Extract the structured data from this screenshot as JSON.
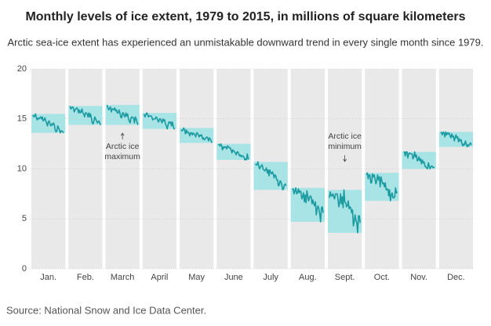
{
  "chart_data": {
    "type": "line",
    "title": "Monthly levels of ice extent, 1979 to 2015, in millions of square kilometers",
    "subtitle": "Arctic sea-ice extent has experienced an unmistakable downward trend in every single month since 1979.",
    "source": "Source: National Snow and Ice Data Center.",
    "ylim": [
      0,
      20
    ],
    "yticks": [
      0,
      5,
      10,
      15,
      20
    ],
    "grid": true,
    "line_color": "#1b9aa0",
    "band_color": "#a8e3e6",
    "panel_color": "#e9e9e9",
    "x": [
      1979,
      1980,
      1981,
      1982,
      1983,
      1984,
      1985,
      1986,
      1987,
      1988,
      1989,
      1990,
      1991,
      1992,
      1993,
      1994,
      1995,
      1996,
      1997,
      1998,
      1999,
      2000,
      2001,
      2002,
      2003,
      2004,
      2005,
      2006,
      2007,
      2008,
      2009,
      2010,
      2011,
      2012,
      2013,
      2014,
      2015
    ],
    "categories": [
      "Jan.",
      "Feb.",
      "March",
      "April",
      "May",
      "June",
      "July",
      "Aug.",
      "Sept.",
      "Oct.",
      "Nov.",
      "Dec."
    ],
    "series": [
      {
        "name": "Jan.",
        "values": [
          15.4,
          15.2,
          15.3,
          15.5,
          15.1,
          14.9,
          15.1,
          15.0,
          15.1,
          15.2,
          15.0,
          15.2,
          14.8,
          14.9,
          15.1,
          14.8,
          14.6,
          14.3,
          14.7,
          14.8,
          14.5,
          14.3,
          14.5,
          14.4,
          14.6,
          14.4,
          13.9,
          13.7,
          13.8,
          14.3,
          14.1,
          13.9,
          13.6,
          13.8,
          13.8,
          13.7,
          13.6
        ]
      },
      {
        "name": "Feb.",
        "values": [
          16.3,
          16.0,
          16.1,
          16.2,
          16.1,
          15.7,
          15.9,
          16.0,
          16.1,
          16.0,
          15.6,
          15.9,
          15.6,
          15.7,
          16.0,
          15.6,
          15.5,
          15.2,
          15.6,
          15.6,
          15.5,
          15.2,
          15.6,
          15.2,
          15.5,
          15.1,
          14.6,
          14.5,
          14.8,
          15.2,
          15.0,
          14.8,
          14.6,
          14.7,
          14.8,
          14.5,
          14.4
        ]
      },
      {
        "name": "March",
        "values": [
          16.4,
          16.1,
          15.9,
          16.1,
          16.2,
          15.7,
          16.0,
          16.0,
          15.9,
          16.1,
          15.8,
          15.9,
          15.6,
          15.6,
          15.9,
          15.6,
          15.2,
          15.1,
          15.6,
          15.6,
          15.3,
          15.2,
          15.6,
          15.3,
          15.5,
          15.0,
          14.8,
          14.6,
          15.1,
          15.2,
          15.1,
          15.1,
          14.6,
          15.2,
          15.0,
          14.7,
          14.4
        ]
      },
      {
        "name": "April",
        "values": [
          15.5,
          15.2,
          15.4,
          15.6,
          15.5,
          15.2,
          15.3,
          15.3,
          15.3,
          15.2,
          14.9,
          15.0,
          15.0,
          15.0,
          15.2,
          15.1,
          14.8,
          14.7,
          15.0,
          15.0,
          14.8,
          14.6,
          15.0,
          14.8,
          14.9,
          14.5,
          14.3,
          14.0,
          14.4,
          14.7,
          14.6,
          14.7,
          14.3,
          14.7,
          14.3,
          14.0,
          14.0
        ]
      },
      {
        "name": "May",
        "values": [
          13.9,
          13.8,
          13.9,
          14.1,
          13.9,
          13.5,
          13.9,
          13.6,
          13.7,
          13.6,
          13.3,
          13.6,
          13.6,
          13.4,
          13.6,
          13.5,
          13.4,
          13.2,
          13.6,
          13.6,
          13.4,
          13.2,
          13.4,
          13.3,
          13.4,
          13.0,
          13.1,
          12.9,
          13.0,
          13.1,
          13.2,
          13.1,
          12.8,
          13.1,
          13.0,
          12.8,
          12.6
        ]
      },
      {
        "name": "June",
        "values": [
          12.5,
          12.4,
          12.3,
          12.5,
          12.3,
          11.9,
          12.2,
          12.1,
          12.2,
          12.2,
          12.0,
          12.3,
          12.2,
          12.1,
          12.1,
          11.9,
          11.6,
          11.9,
          11.8,
          11.7,
          11.6,
          11.4,
          11.7,
          11.7,
          11.5,
          11.3,
          11.4,
          11.2,
          11.3,
          11.3,
          11.2,
          10.9,
          11.0,
          10.9,
          11.5,
          11.0,
          11.0
        ]
      },
      {
        "name": "July",
        "values": [
          10.5,
          10.4,
          10.4,
          10.7,
          10.3,
          10.0,
          10.2,
          10.3,
          10.4,
          10.0,
          9.9,
          9.8,
          9.9,
          10.1,
          9.6,
          9.9,
          9.3,
          9.9,
          9.6,
          9.5,
          9.7,
          9.5,
          9.1,
          9.4,
          9.3,
          8.9,
          8.9,
          8.3,
          8.4,
          8.8,
          8.7,
          8.4,
          7.9,
          8.0,
          8.4,
          8.5,
          8.3
        ]
      },
      {
        "name": "Aug.",
        "values": [
          7.9,
          8.0,
          7.5,
          7.8,
          8.1,
          7.5,
          7.6,
          8.0,
          7.6,
          7.8,
          7.7,
          7.0,
          7.2,
          7.6,
          6.7,
          7.4,
          6.6,
          7.8,
          7.3,
          6.8,
          7.1,
          7.3,
          7.2,
          6.5,
          6.9,
          6.5,
          6.3,
          6.7,
          5.4,
          6.0,
          6.3,
          6.0,
          5.5,
          4.7,
          6.1,
          6.2,
          5.6
        ]
      },
      {
        "name": "Sept.",
        "values": [
          7.1,
          7.7,
          7.3,
          7.3,
          7.5,
          7.2,
          7.0,
          7.5,
          7.5,
          7.5,
          7.0,
          6.2,
          6.6,
          7.5,
          6.5,
          7.2,
          6.1,
          7.9,
          6.7,
          6.6,
          6.2,
          6.3,
          6.8,
          6.0,
          6.2,
          6.1,
          5.6,
          5.9,
          4.3,
          4.7,
          5.4,
          4.9,
          4.6,
          3.6,
          5.3,
          5.3,
          4.6
        ]
      },
      {
        "name": "Oct.",
        "values": [
          9.4,
          9.6,
          9.0,
          9.4,
          9.4,
          8.6,
          8.6,
          9.5,
          9.2,
          9.4,
          9.0,
          8.5,
          8.8,
          9.4,
          8.9,
          9.2,
          8.2,
          9.2,
          8.8,
          8.5,
          8.6,
          8.2,
          8.6,
          7.9,
          7.9,
          8.0,
          7.3,
          7.9,
          6.8,
          7.4,
          7.6,
          7.1,
          7.1,
          7.2,
          8.1,
          7.6,
          7.7
        ]
      },
      {
        "name": "Nov.",
        "values": [
          11.7,
          11.7,
          11.3,
          11.7,
          11.7,
          11.1,
          11.5,
          11.6,
          11.5,
          11.5,
          11.5,
          11.0,
          11.2,
          11.7,
          11.2,
          11.4,
          10.8,
          10.9,
          11.2,
          10.8,
          11.0,
          10.5,
          10.9,
          10.6,
          10.7,
          10.3,
          10.2,
          10.1,
          10.0,
          10.6,
          10.3,
          10.0,
          10.2,
          10.3,
          10.2,
          10.1,
          10.2
        ]
      },
      {
        "name": "Dec.",
        "values": [
          13.7,
          13.6,
          13.4,
          13.7,
          13.6,
          13.2,
          13.7,
          13.4,
          13.6,
          13.5,
          13.6,
          13.3,
          13.1,
          13.5,
          13.2,
          13.3,
          12.8,
          13.1,
          13.4,
          13.1,
          13.2,
          12.7,
          13.0,
          12.8,
          12.9,
          12.5,
          12.3,
          12.5,
          12.4,
          12.8,
          12.5,
          12.2,
          12.4,
          12.3,
          12.5,
          12.6,
          12.4
        ]
      }
    ],
    "annotations": [
      {
        "category": "March",
        "lines": [
          "Arctic ice",
          "maximum"
        ],
        "arrow": "up"
      },
      {
        "category": "Sept.",
        "lines": [
          "Arctic ice",
          "minimum"
        ],
        "arrow": "down"
      }
    ]
  }
}
